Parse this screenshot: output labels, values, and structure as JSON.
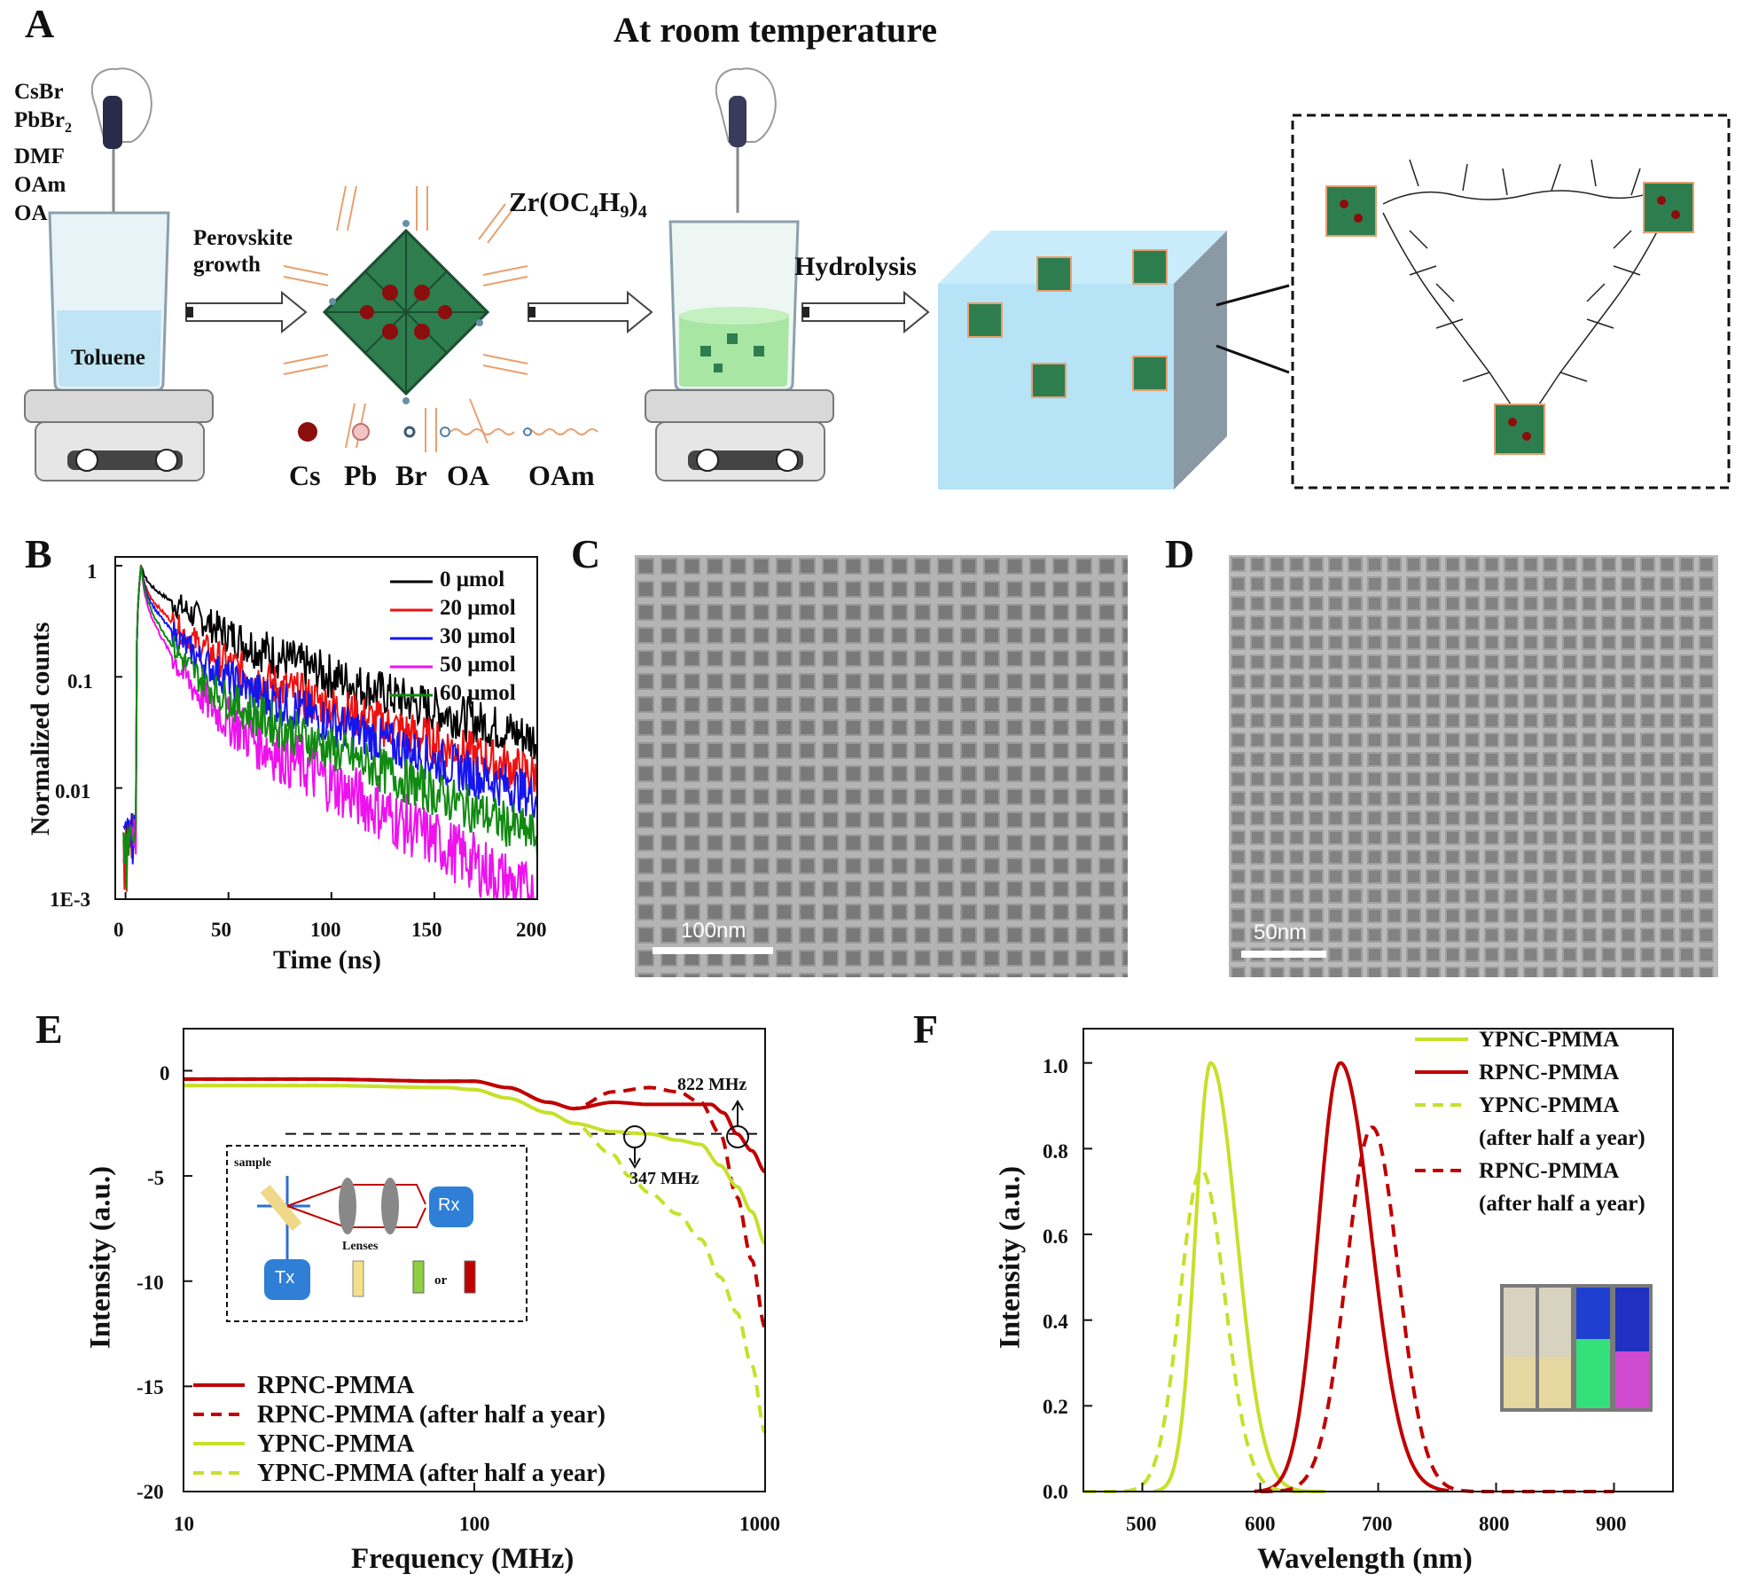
{
  "panels": {
    "A": "A",
    "B": "B",
    "C": "C",
    "D": "D",
    "E": "E",
    "F": "F"
  },
  "panelA": {
    "title": "At room temperature",
    "reagents": [
      "CsBr",
      "PbBr2",
      "DMF",
      "OAm",
      "OA"
    ],
    "reagent_sub": "2",
    "beaker1_label": "Toluene",
    "step1": "Perovskite growth",
    "step1_line1": "Perovskite",
    "step1_line2": "growth",
    "precursor": "Zr(OC4H9)4",
    "precursor_main": "Zr(OC",
    "precursor_sub1": "4",
    "precursor_mid": "H",
    "precursor_sub2": "9",
    "precursor_close": ")",
    "precursor_sub3": "4",
    "step2": "Hydrolysis",
    "legend": [
      "Cs",
      "Pb",
      "Br",
      "OA",
      "OAm"
    ],
    "colors": {
      "Cs": "#8b0d0d",
      "Pb": "#e8a0a0",
      "Br": "#6a8fa8",
      "octahedron": "#2e7d4f",
      "ligand": "#e8a070"
    }
  },
  "panelB": {
    "xlabel": "Time (ns)",
    "ylabel": "Normalized counts",
    "xticks": [
      "0",
      "50",
      "100",
      "150",
      "200"
    ],
    "yticks": [
      "1",
      "0.1",
      "0.01",
      "1E-3"
    ]
  },
  "panelC": {
    "scale": "100nm"
  },
  "panelD": {
    "scale": "50nm"
  },
  "panelE": {
    "xlabel": "Frequency (MHz)",
    "ylabel": "Intensity (a.u.)",
    "xticks": [
      "10",
      "100",
      "1000"
    ],
    "yticks": [
      "0",
      "-5",
      "-10",
      "-15",
      "-20"
    ],
    "ann_high": "822 MHz",
    "ann_low": "347 MHz",
    "inset": {
      "sample": "sample",
      "rx": "Rx",
      "tx": "Tx",
      "lenses": "Lenses",
      "or": "or"
    }
  },
  "panelF": {
    "xlabel": "Wavelength (nm)",
    "ylabel": "Intensity (a.u.)",
    "xticks": [
      "500",
      "600",
      "700",
      "800",
      "900"
    ],
    "yticks": [
      "0.0",
      "0.2",
      "0.4",
      "0.6",
      "0.8",
      "1.0"
    ],
    "legend": [
      "YPNC-PMMA",
      "RPNC-PMMA",
      "YPNC-PMMA",
      "(after half a year)",
      "RPNC-PMMA",
      "(after half a year)"
    ]
  },
  "chart_data": [
    {
      "type": "line",
      "panel": "B",
      "xlabel": "Time (ns)",
      "ylabel": "Normalized counts",
      "xlim": [
        -5,
        200
      ],
      "ylim": [
        0.001,
        1.2
      ],
      "yscale": "log",
      "legend_position": "top-right",
      "series": [
        {
          "name": "0 μmol",
          "color": "#000000",
          "tau": [
            2,
            22,
            80
          ],
          "amp": [
            0.25,
            0.45,
            0.3
          ],
          "values_at": [
            [
              8,
              1
            ],
            [
              50,
              0.2
            ],
            [
              100,
              0.085
            ],
            [
              150,
              0.05
            ],
            [
              200,
              0.03
            ]
          ]
        },
        {
          "name": "20 μmol",
          "color": "#ee1111",
          "tau": [
            1.5,
            14,
            70
          ],
          "amp": [
            0.35,
            0.45,
            0.2
          ],
          "values_at": [
            [
              8,
              1
            ],
            [
              50,
              0.1
            ],
            [
              100,
              0.045
            ],
            [
              150,
              0.027
            ],
            [
              200,
              0.018
            ]
          ]
        },
        {
          "name": "30 μmol",
          "color": "#1515ee",
          "tau": [
            1.5,
            12,
            65
          ],
          "amp": [
            0.38,
            0.46,
            0.16
          ],
          "values_at": [
            [
              8,
              1
            ],
            [
              50,
              0.07
            ],
            [
              100,
              0.03
            ],
            [
              150,
              0.017
            ],
            [
              200,
              0.009
            ]
          ]
        },
        {
          "name": "50 μmol",
          "color": "#ee11ee",
          "tau": [
            1.2,
            9,
            42
          ],
          "amp": [
            0.45,
            0.45,
            0.1
          ],
          "values_at": [
            [
              8,
              1
            ],
            [
              50,
              0.035
            ],
            [
              100,
              0.011
            ],
            [
              150,
              0.005
            ],
            [
              200,
              0.003
            ]
          ]
        },
        {
          "name": "60 μmol",
          "color": "#118a11",
          "tau": [
            1.4,
            10,
            55
          ],
          "amp": [
            0.42,
            0.46,
            0.12
          ],
          "values_at": [
            [
              8,
              1
            ],
            [
              50,
              0.045
            ],
            [
              100,
              0.018
            ],
            [
              150,
              0.009
            ],
            [
              200,
              0.006
            ]
          ]
        }
      ]
    },
    {
      "type": "line",
      "panel": "E",
      "xlabel": "Frequency (MHz)",
      "ylabel": "Intensity (a.u.)",
      "xscale": "log",
      "xlim": [
        10,
        1000
      ],
      "ylim": [
        -20,
        2
      ],
      "reference_line": -3,
      "legend_position": "bottom-left",
      "series": [
        {
          "name": "RPNC-PMMA",
          "color": "#c00000",
          "dash": false,
          "x": [
            10,
            30,
            80,
            100,
            130,
            180,
            220,
            300,
            400,
            500,
            650,
            720,
            800,
            900,
            1000
          ],
          "y": [
            -0.4,
            -0.4,
            -0.5,
            -0.5,
            -0.8,
            -1.5,
            -1.8,
            -1.5,
            -1.6,
            -1.6,
            -1.6,
            -2.0,
            -3.0,
            -3.8,
            -4.8
          ]
        },
        {
          "name": "RPNC-PMMA (after half a year)",
          "color": "#c00000",
          "dash": true,
          "x": [
            10,
            30,
            80,
            100,
            130,
            180,
            220,
            300,
            400,
            500,
            600,
            700,
            800,
            900,
            1000
          ],
          "y": [
            -0.4,
            -0.4,
            -0.5,
            -0.5,
            -0.8,
            -1.5,
            -1.8,
            -1.0,
            -0.8,
            -1.0,
            -1.5,
            -3.0,
            -6.0,
            -9.0,
            -12.2
          ]
        },
        {
          "name": "YPNC-PMMA",
          "color": "#c6e02a",
          "dash": false,
          "x": [
            10,
            30,
            80,
            100,
            130,
            180,
            220,
            300,
            400,
            500,
            600,
            700,
            800,
            900,
            1000
          ],
          "y": [
            -0.7,
            -0.7,
            -0.8,
            -0.9,
            -1.3,
            -2.0,
            -2.5,
            -2.9,
            -3.0,
            -3.3,
            -3.5,
            -4.5,
            -5.5,
            -6.7,
            -8.2
          ]
        },
        {
          "name": "YPNC-PMMA (after half a year)",
          "color": "#c6e02a",
          "dash": true,
          "x": [
            10,
            30,
            80,
            100,
            130,
            180,
            220,
            300,
            340,
            400,
            500,
            600,
            700,
            800,
            900,
            1000
          ],
          "y": [
            -0.7,
            -0.7,
            -0.8,
            -0.9,
            -1.3,
            -2.0,
            -2.5,
            -4.0,
            -5.0,
            -5.8,
            -6.8,
            -8.0,
            -9.8,
            -11.5,
            -14.0,
            -17.2
          ]
        }
      ]
    },
    {
      "type": "line",
      "panel": "F",
      "xlabel": "Wavelength (nm)",
      "ylabel": "Intensity (a.u.)",
      "xlim": [
        450,
        950
      ],
      "ylim": [
        0,
        1.08
      ],
      "legend_position": "top-right",
      "series": [
        {
          "name": "YPNC-PMMA",
          "color": "#c6e02a",
          "dash": false,
          "peak": 558,
          "height": 1.0,
          "width_left": 13,
          "width_right": 22,
          "start": 510,
          "end": 655
        },
        {
          "name": "RPNC-PMMA",
          "color": "#c00000",
          "dash": false,
          "peak": 668,
          "height": 1.0,
          "width_left": 19,
          "width_right": 26,
          "start": 595,
          "end": 760
        },
        {
          "name": "YPNC-PMMA (after half a year)",
          "color": "#c6e02a",
          "dash": true,
          "peak": 550,
          "height": 0.75,
          "width_left": 18,
          "width_right": 20,
          "start": 450,
          "end": 650
        },
        {
          "name": "RPNC-PMMA (after half a year)",
          "color": "#c00000",
          "dash": true,
          "peak": 695,
          "height": 0.85,
          "width_left": 22,
          "width_right": 22,
          "start": 600,
          "end": 900
        }
      ]
    }
  ]
}
